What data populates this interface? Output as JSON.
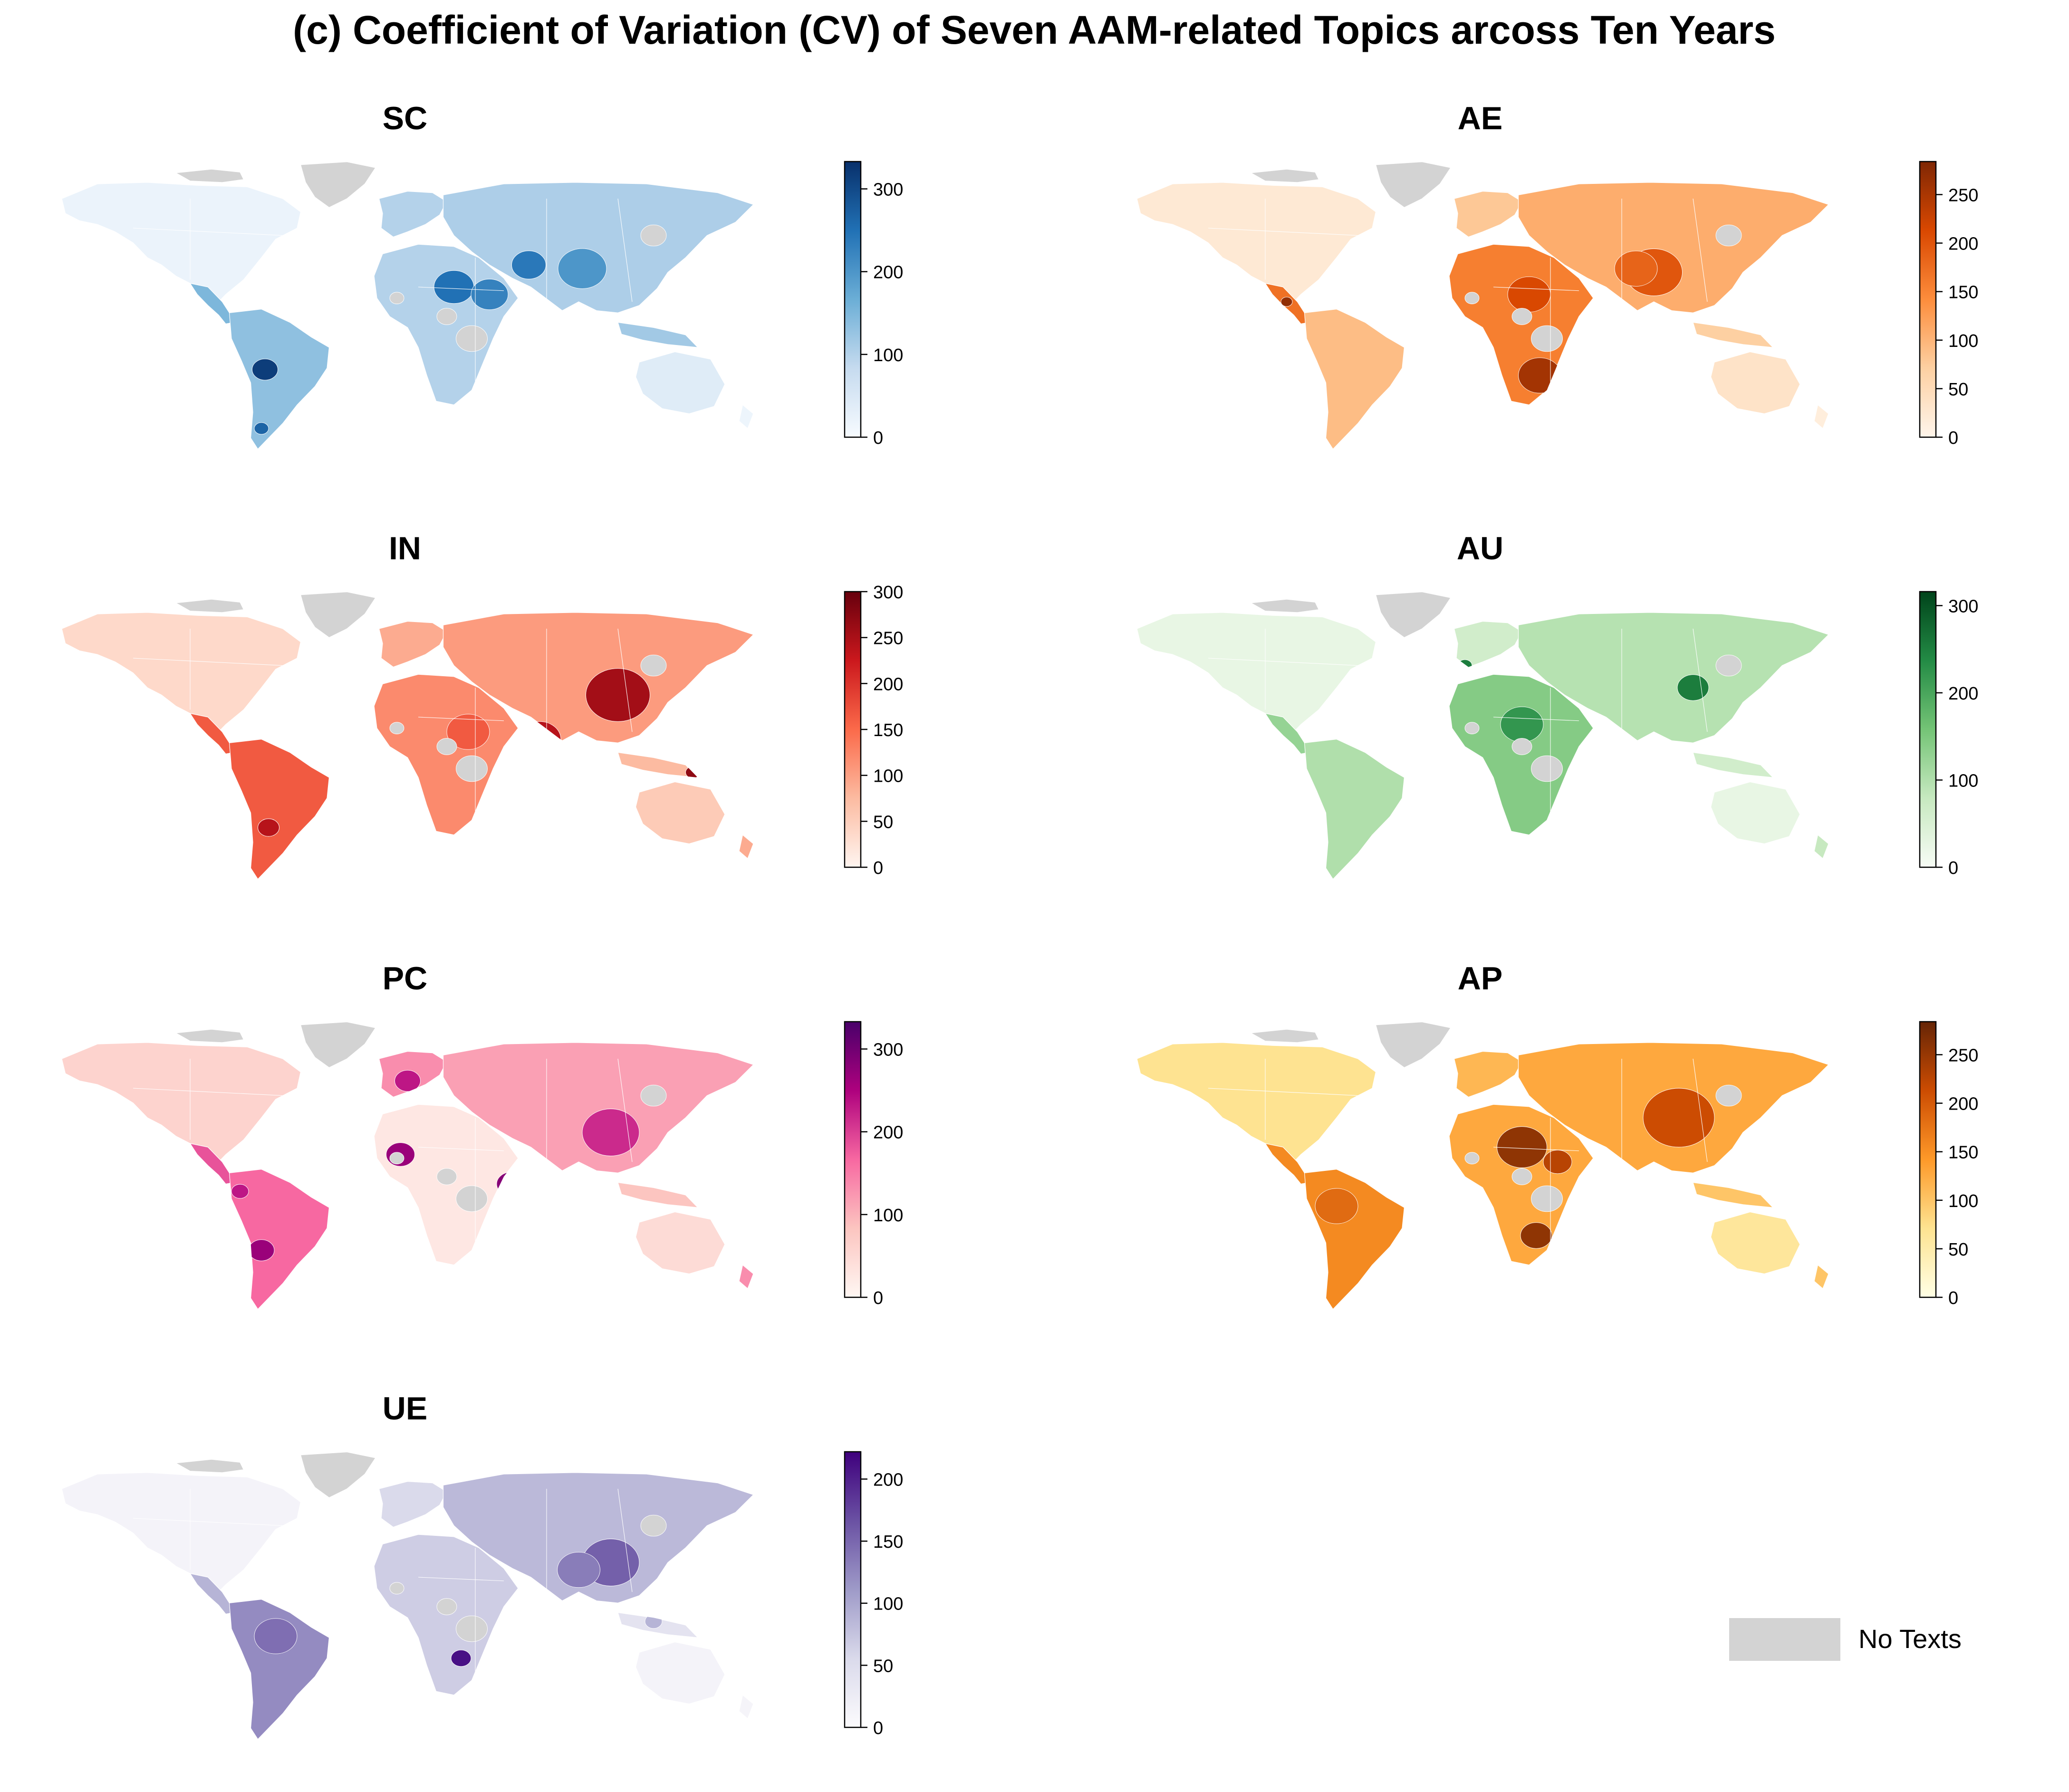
{
  "title": "(c) Coefficient of Variation (CV) of Seven AAM-related Topics arcoss Ten Years",
  "no_data_color": "#d3d3d3",
  "legend": {
    "label": "No Texts"
  },
  "chart_data": [
    {
      "type": "heatmap",
      "title": "SC",
      "colormap": "Blues",
      "colors": [
        "#f7fbff",
        "#c6dbef",
        "#6baed6",
        "#2171b5",
        "#08306b"
      ],
      "vmax": 333,
      "ticks": [
        0,
        100,
        200,
        300
      ],
      "tick_labels": [
        "0",
        "100",
        "200",
        "300"
      ]
    },
    {
      "type": "heatmap",
      "title": "AE",
      "colormap": "Oranges",
      "colors": [
        "#fff5eb",
        "#fdd0a2",
        "#fd8d3c",
        "#d94801",
        "#7f2704"
      ],
      "vmax": 284,
      "ticks": [
        0,
        50,
        100,
        150,
        200,
        250
      ],
      "tick_labels": [
        "0",
        "50",
        "100",
        "150",
        "200",
        "250"
      ]
    },
    {
      "type": "heatmap",
      "title": "IN",
      "colormap": "Reds",
      "colors": [
        "#fff5f0",
        "#fcbba1",
        "#fb6a4a",
        "#cb181d",
        "#67000d"
      ],
      "vmax": 300,
      "ticks": [
        0,
        50,
        100,
        150,
        200,
        250,
        300
      ],
      "tick_labels": [
        "0",
        "50",
        "100",
        "150",
        "200",
        "250",
        "300"
      ]
    },
    {
      "type": "heatmap",
      "title": "AU",
      "colormap": "Greens",
      "colors": [
        "#f7fcf5",
        "#c7e9c0",
        "#74c476",
        "#238b45",
        "#00441b"
      ],
      "vmax": 316,
      "ticks": [
        0,
        100,
        200,
        300
      ],
      "tick_labels": [
        "0",
        "100",
        "200",
        "300"
      ]
    },
    {
      "type": "heatmap",
      "title": "PC",
      "colormap": "RdPu",
      "colors": [
        "#fff7f3",
        "#fcc5c0",
        "#f768a1",
        "#ae017e",
        "#49006a"
      ],
      "vmax": 333,
      "ticks": [
        0,
        100,
        200,
        300
      ],
      "tick_labels": [
        "0",
        "100",
        "200",
        "300"
      ]
    },
    {
      "type": "heatmap",
      "title": "AP",
      "colormap": "YlOrBr",
      "colors": [
        "#ffffe5",
        "#fee391",
        "#fe9929",
        "#cc4c02",
        "#662506"
      ],
      "vmax": 284,
      "ticks": [
        0,
        50,
        100,
        150,
        200,
        250
      ],
      "tick_labels": [
        "0",
        "50",
        "100",
        "150",
        "200",
        "250"
      ]
    },
    {
      "type": "heatmap",
      "title": "UE",
      "colormap": "Purples",
      "colors": [
        "#fcfbfd",
        "#dadaeb",
        "#9e9ac8",
        "#6a51a3",
        "#3f007d"
      ],
      "vmax": 222,
      "ticks": [
        0,
        50,
        100,
        150,
        200
      ],
      "tick_labels": [
        "0",
        "50",
        "100",
        "150",
        "200"
      ]
    }
  ]
}
